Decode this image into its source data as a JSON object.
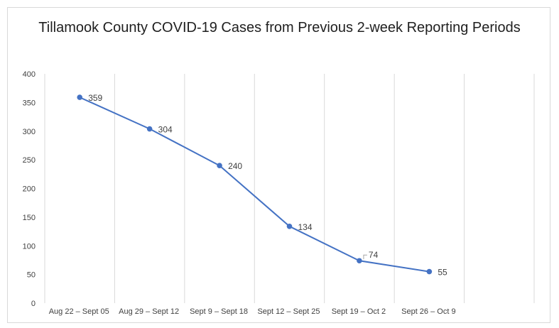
{
  "chart_data": {
    "type": "line",
    "title": "Tillamook County COVID-19 Cases from Previous 2-week Reporting Periods",
    "xlabel": "",
    "ylabel": "",
    "categories": [
      "Aug 22 – Sept 05",
      "Aug 29 – Sept 12",
      "Sept 9 – Sept 18",
      "Sept 12 – Sept 25",
      "Sept 19 – Oct 2",
      "Sept 26 – Oct 9"
    ],
    "series": [
      {
        "values": [
          359,
          304,
          240,
          134,
          74,
          55
        ]
      }
    ],
    "data_labels": [
      "359",
      "304",
      "240",
      "134",
      "74",
      "55"
    ],
    "ylim": [
      0,
      400
    ],
    "yticks": [
      0,
      50,
      100,
      150,
      200,
      250,
      300,
      350,
      400
    ],
    "grid": "vertical",
    "legend": "none",
    "colors": {
      "line": "#4472c4",
      "grid": "#d9d9d9",
      "text": "#404040"
    }
  }
}
